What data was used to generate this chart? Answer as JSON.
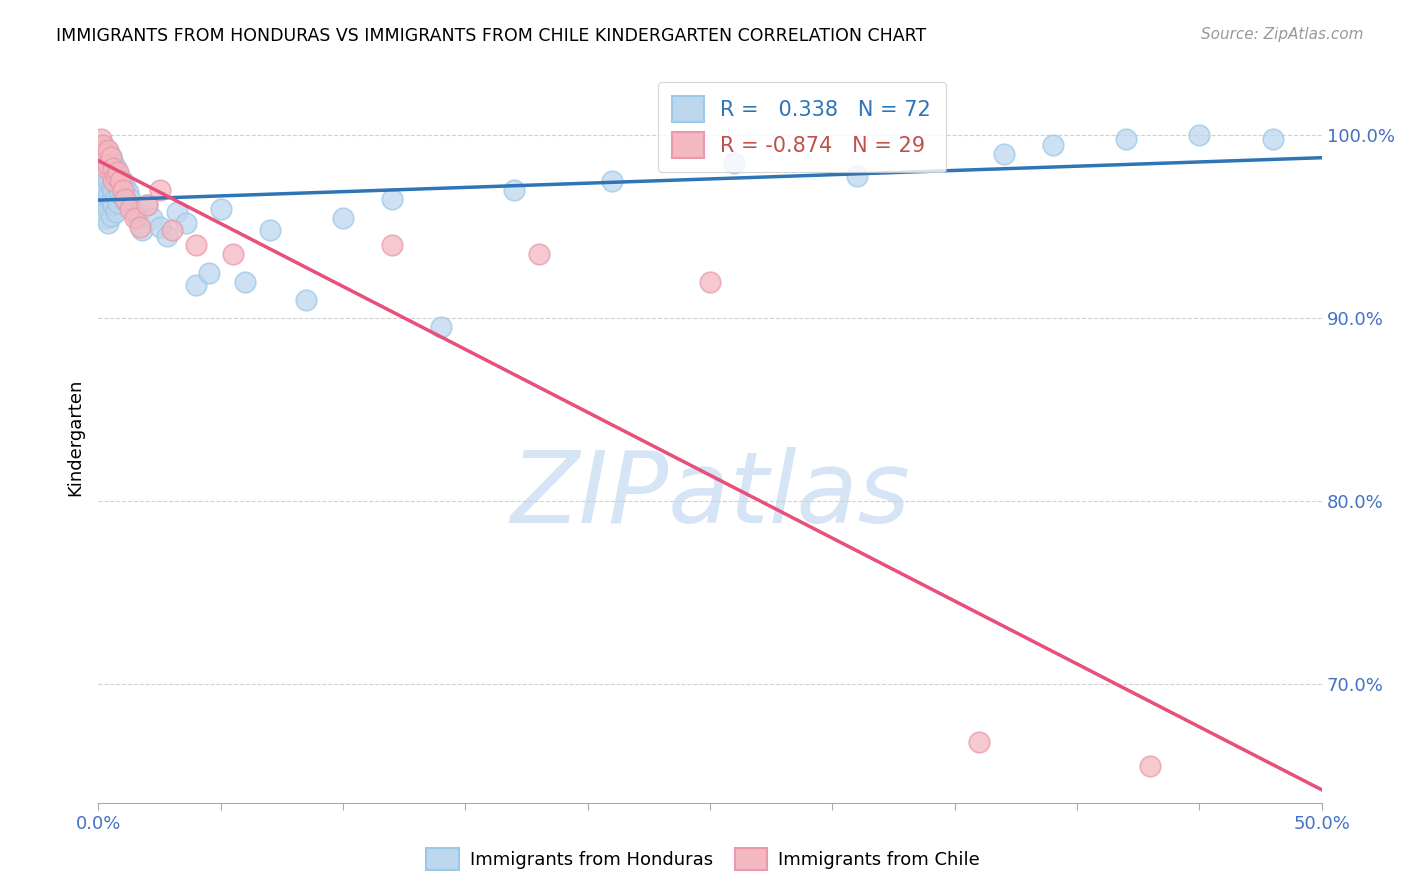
{
  "title": "IMMIGRANTS FROM HONDURAS VS IMMIGRANTS FROM CHILE KINDERGARTEN CORRELATION CHART",
  "source": "Source: ZipAtlas.com",
  "ylabel": "Kindergarten",
  "xmin": 0.0,
  "xmax": 0.5,
  "ymin": 0.635,
  "ymax": 1.035,
  "yticks": [
    0.7,
    0.8,
    0.9,
    1.0
  ],
  "ytick_labels": [
    "70.0%",
    "80.0%",
    "90.0%",
    "100.0%"
  ],
  "xticks_minor": [
    0.0,
    0.05,
    0.1,
    0.15,
    0.2,
    0.25,
    0.3,
    0.35,
    0.4,
    0.45,
    0.5
  ],
  "xtick_labels_ends": [
    "0.0%",
    "50.0%"
  ],
  "honduras_fill_color": "#bdd7ee",
  "honduras_edge_color": "#9ec8e8",
  "chile_fill_color": "#f4b8c1",
  "chile_edge_color": "#e89aaa",
  "honduras_line_color": "#2e75b6",
  "chile_line_color": "#e8507a",
  "R_honduras": 0.338,
  "N_honduras": 72,
  "R_chile": -0.874,
  "N_chile": 29,
  "legend_color_1": "#2e75b6",
  "legend_color_2": "#c0504d",
  "watermark": "ZIPatlas",
  "watermark_color": "#d5e5f5",
  "grid_color": "#d0d0d0",
  "honduras_x": [
    0.001,
    0.001,
    0.001,
    0.002,
    0.002,
    0.002,
    0.002,
    0.002,
    0.003,
    0.003,
    0.003,
    0.003,
    0.003,
    0.003,
    0.004,
    0.004,
    0.004,
    0.004,
    0.004,
    0.004,
    0.005,
    0.005,
    0.005,
    0.005,
    0.005,
    0.006,
    0.006,
    0.006,
    0.006,
    0.007,
    0.007,
    0.007,
    0.007,
    0.008,
    0.008,
    0.008,
    0.009,
    0.009,
    0.01,
    0.01,
    0.011,
    0.011,
    0.012,
    0.013,
    0.014,
    0.015,
    0.016,
    0.018,
    0.02,
    0.022,
    0.025,
    0.028,
    0.032,
    0.036,
    0.04,
    0.045,
    0.05,
    0.06,
    0.07,
    0.085,
    0.1,
    0.12,
    0.14,
    0.17,
    0.21,
    0.26,
    0.31,
    0.37,
    0.39,
    0.42,
    0.45,
    0.48
  ],
  "honduras_y": [
    0.99,
    0.982,
    0.975,
    0.995,
    0.988,
    0.98,
    0.972,
    0.965,
    0.992,
    0.985,
    0.978,
    0.97,
    0.962,
    0.955,
    0.99,
    0.982,
    0.975,
    0.967,
    0.96,
    0.952,
    0.988,
    0.98,
    0.972,
    0.964,
    0.956,
    0.985,
    0.977,
    0.97,
    0.962,
    0.982,
    0.974,
    0.966,
    0.958,
    0.979,
    0.971,
    0.963,
    0.976,
    0.968,
    0.975,
    0.967,
    0.972,
    0.964,
    0.969,
    0.965,
    0.96,
    0.958,
    0.955,
    0.948,
    0.962,
    0.955,
    0.95,
    0.945,
    0.958,
    0.952,
    0.918,
    0.925,
    0.96,
    0.92,
    0.948,
    0.91,
    0.955,
    0.965,
    0.895,
    0.97,
    0.975,
    0.985,
    0.978,
    0.99,
    0.995,
    0.998,
    1.0,
    0.998
  ],
  "chile_x": [
    0.001,
    0.001,
    0.002,
    0.002,
    0.003,
    0.003,
    0.004,
    0.004,
    0.005,
    0.006,
    0.006,
    0.007,
    0.008,
    0.009,
    0.01,
    0.011,
    0.013,
    0.015,
    0.017,
    0.02,
    0.025,
    0.03,
    0.04,
    0.055,
    0.12,
    0.18,
    0.25,
    0.36,
    0.43
  ],
  "chile_y": [
    0.998,
    0.992,
    0.995,
    0.988,
    0.99,
    0.982,
    0.992,
    0.984,
    0.988,
    0.982,
    0.975,
    0.978,
    0.98,
    0.975,
    0.97,
    0.965,
    0.96,
    0.955,
    0.95,
    0.962,
    0.97,
    0.948,
    0.94,
    0.935,
    0.94,
    0.935,
    0.92,
    0.668,
    0.655
  ]
}
